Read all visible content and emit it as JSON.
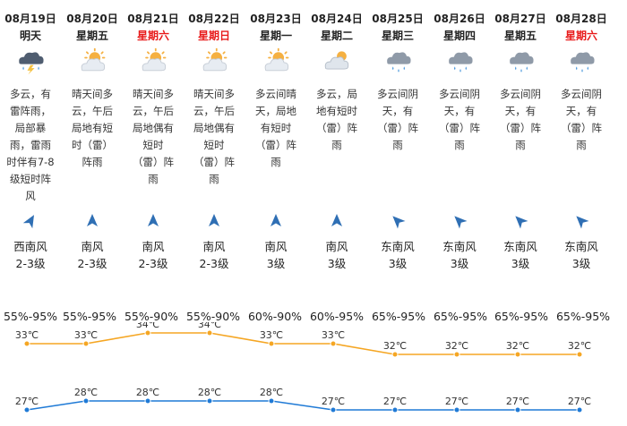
{
  "days": [
    {
      "date": "08月19日",
      "week": "明天",
      "weekend": false,
      "icon": "thunderstorm-cloud-icon",
      "desc": [
        "多云，有",
        "雷阵雨，",
        "局部暴",
        "雨，雷雨",
        "时伴有7-8",
        "级短时阵",
        "风"
      ],
      "wind_dir_icon": "wind-arrow-icon",
      "wind_angle": 30,
      "wind": "西南风",
      "level": "2-3级",
      "humidity": "55%-95%"
    },
    {
      "date": "08月20日",
      "week": "星期五",
      "weekend": false,
      "icon": "partly-cloudy-sun-icon",
      "desc": [
        "晴天间多",
        "云，午后",
        "局地有短",
        "时（雷）",
        "阵雨"
      ],
      "wind_dir_icon": "wind-arrow-icon",
      "wind_angle": 0,
      "wind": "南风",
      "level": "2-3级",
      "humidity": "55%-95%"
    },
    {
      "date": "08月21日",
      "week": "星期六",
      "weekend": true,
      "icon": "partly-cloudy-sun-icon",
      "desc": [
        "晴天间多",
        "云，午后",
        "局地偶有",
        "短时",
        "（雷）阵",
        "雨"
      ],
      "wind_dir_icon": "wind-arrow-icon",
      "wind_angle": 0,
      "wind": "南风",
      "level": "2-3级",
      "humidity": "55%-90%"
    },
    {
      "date": "08月22日",
      "week": "星期日",
      "weekend": true,
      "icon": "partly-cloudy-sun-icon",
      "desc": [
        "晴天间多",
        "云，午后",
        "局地偶有",
        "短时",
        "（雷）阵",
        "雨"
      ],
      "wind_dir_icon": "wind-arrow-icon",
      "wind_angle": 0,
      "wind": "南风",
      "level": "2-3级",
      "humidity": "55%-90%"
    },
    {
      "date": "08月23日",
      "week": "星期一",
      "weekend": false,
      "icon": "partly-cloudy-sun-icon",
      "desc": [
        "多云间晴",
        "天，局地",
        "有短时",
        "（雷）阵",
        "雨"
      ],
      "wind_dir_icon": "wind-arrow-icon",
      "wind_angle": 0,
      "wind": "南风",
      "level": "3级",
      "humidity": "60%-90%"
    },
    {
      "date": "08月24日",
      "week": "星期二",
      "weekend": false,
      "icon": "cloudy-sun-icon",
      "desc": [
        "多云，局",
        "地有短时",
        "（雷）阵",
        "雨"
      ],
      "wind_dir_icon": "wind-arrow-icon",
      "wind_angle": 0,
      "wind": "南风",
      "level": "3级",
      "humidity": "60%-95%"
    },
    {
      "date": "08月25日",
      "week": "星期三",
      "weekend": false,
      "icon": "cloud-rain-icon",
      "desc": [
        "多云间阴",
        "天，有",
        "（雷）阵",
        "雨"
      ],
      "wind_dir_icon": "wind-arrow-icon",
      "wind_angle": -45,
      "wind": "东南风",
      "level": "3级",
      "humidity": "65%-95%"
    },
    {
      "date": "08月26日",
      "week": "星期四",
      "weekend": false,
      "icon": "cloud-rain-icon",
      "desc": [
        "多云间阴",
        "天，有",
        "（雷）阵",
        "雨"
      ],
      "wind_dir_icon": "wind-arrow-icon",
      "wind_angle": -45,
      "wind": "东南风",
      "level": "3级",
      "humidity": "65%-95%"
    },
    {
      "date": "08月27日",
      "week": "星期五",
      "weekend": false,
      "icon": "cloud-rain-icon",
      "desc": [
        "多云间阴",
        "天，有",
        "（雷）阵",
        "雨"
      ],
      "wind_dir_icon": "wind-arrow-icon",
      "wind_angle": -45,
      "wind": "东南风",
      "level": "3级",
      "humidity": "65%-95%"
    },
    {
      "date": "08月28日",
      "week": "星期六",
      "weekend": true,
      "icon": "cloud-rain-icon",
      "desc": [
        "多云间阴",
        "天，有",
        "（雷）阵",
        "雨"
      ],
      "wind_dir_icon": "wind-arrow-icon",
      "wind_angle": -45,
      "wind": "东南风",
      "level": "3级",
      "humidity": "65%-95%"
    }
  ],
  "high_temps": [
    "33℃",
    "33℃",
    "34℃",
    "34℃",
    "33℃",
    "33℃",
    "32℃",
    "32℃",
    "32℃",
    "32℃"
  ],
  "low_temps": [
    "27℃",
    "28℃",
    "28℃",
    "28℃",
    "28℃",
    "27℃",
    "27℃",
    "27℃",
    "27℃",
    "27℃"
  ],
  "colors": {
    "high_line": "#f5a623",
    "low_line": "#1f7ad6",
    "weekend_text": "#e81a1a",
    "arrow": "#2f6fb4"
  }
}
